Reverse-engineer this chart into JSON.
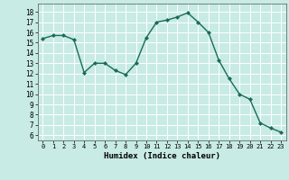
{
  "x": [
    0,
    1,
    2,
    3,
    4,
    5,
    6,
    7,
    8,
    9,
    10,
    11,
    12,
    13,
    14,
    15,
    16,
    17,
    18,
    19,
    20,
    21,
    22,
    23
  ],
  "y": [
    15.4,
    15.7,
    15.7,
    15.3,
    12.1,
    13.0,
    13.0,
    12.3,
    11.9,
    13.0,
    15.5,
    17.0,
    17.2,
    17.5,
    17.9,
    17.0,
    16.0,
    13.3,
    11.5,
    10.0,
    9.5,
    7.2,
    6.7,
    6.3
  ],
  "line_color": "#1a6b5a",
  "marker": "D",
  "marker_size": 2.0,
  "bg_color": "#c8ebe5",
  "grid_color": "#ffffff",
  "xlabel": "Humidex (Indice chaleur)",
  "ylabel_ticks": [
    6,
    7,
    8,
    9,
    10,
    11,
    12,
    13,
    14,
    15,
    16,
    17,
    18
  ],
  "ylim": [
    5.5,
    18.8
  ],
  "xlim": [
    -0.5,
    23.5
  ],
  "xticks": [
    0,
    1,
    2,
    3,
    4,
    5,
    6,
    7,
    8,
    9,
    10,
    11,
    12,
    13,
    14,
    15,
    16,
    17,
    18,
    19,
    20,
    21,
    22,
    23
  ]
}
